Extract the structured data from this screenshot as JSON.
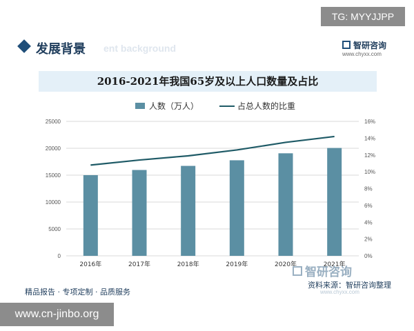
{
  "watermark_top": "TG: MYYJJPP",
  "header": {
    "section_title": "发展背景",
    "section_subtitle_en": "ent background",
    "brand_name": "智研咨询",
    "brand_url": "www.chyxx.com"
  },
  "chart_data": {
    "type": "bar",
    "title": "2016-2021年我国65岁及以上人口数量及占比",
    "categories": [
      "2016年",
      "2017年",
      "2018年",
      "2019年",
      "2020年",
      "2021年"
    ],
    "series": [
      {
        "name": "人数（万人）",
        "type": "bar",
        "axis": "left",
        "values": [
          15003,
          15961,
          16724,
          17767,
          19064,
          20056
        ]
      },
      {
        "name": "占总人数的比重",
        "type": "line",
        "axis": "right",
        "values": [
          10.8,
          11.4,
          11.9,
          12.6,
          13.5,
          14.2
        ]
      }
    ],
    "y_left": {
      "min": 0,
      "max": 25000,
      "ticks": [
        0,
        5000,
        10000,
        15000,
        20000,
        25000
      ]
    },
    "y_right": {
      "min": 0,
      "max": 16,
      "ticks": [
        "0%",
        "2%",
        "4%",
        "6%",
        "8%",
        "10%",
        "12%",
        "14%",
        "16%"
      ]
    },
    "grid": true,
    "legend": "top-center",
    "colors": {
      "bar": "#5b8fa3",
      "line": "#1e5a66",
      "grid": "#d9d9d9",
      "axis_text": "#555555"
    }
  },
  "footer": {
    "left": "精品报告 · 专项定制 · 品质服务",
    "source": "资料来源：智研咨询整理",
    "source_brand": "智研咨询",
    "url": "www.chyxx.com"
  },
  "watermark_bottom": "www.cn-jinbo.org"
}
